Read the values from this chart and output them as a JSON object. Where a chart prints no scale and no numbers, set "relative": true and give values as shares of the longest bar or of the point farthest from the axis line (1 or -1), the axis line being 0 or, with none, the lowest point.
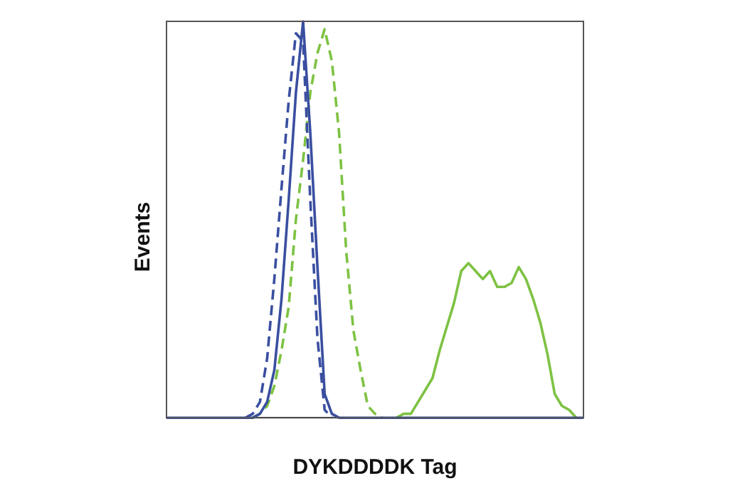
{
  "chart_data": {
    "type": "line",
    "xlabel": "DYKDDDDK Tag",
    "ylabel": "Events",
    "relative": true,
    "legend": false,
    "grid": false,
    "marker": "none",
    "categories": [
      null,
      null,
      null,
      null,
      null,
      null,
      null,
      null,
      null,
      null,
      null,
      null,
      null,
      null,
      null,
      null,
      null,
      null,
      null,
      null,
      null,
      null,
      null,
      null,
      null,
      null,
      null,
      null,
      null,
      null,
      null,
      null,
      null,
      null,
      null,
      null,
      null,
      null,
      null,
      null,
      null,
      null,
      null,
      null,
      null,
      null,
      null,
      null,
      null,
      null,
      null,
      null,
      null,
      null,
      null,
      null,
      null,
      null,
      null
    ],
    "series": [
      {
        "color": "#7dc242",
        "line_style": "dashed",
        "values": [
          null,
          null,
          null,
          null,
          null,
          null,
          null,
          null,
          null,
          null,
          null,
          null,
          0,
          0.01,
          0.03,
          0.08,
          0.17,
          0.28,
          0.5,
          0.65,
          0.82,
          0.92,
          0.98,
          0.9,
          0.72,
          0.42,
          0.22,
          0.12,
          0.03,
          0.01,
          0,
          null,
          null,
          null,
          null,
          null,
          null,
          null,
          null,
          null,
          null,
          null,
          null,
          null,
          null,
          null,
          null,
          null,
          null,
          null,
          null,
          null,
          null,
          null,
          null,
          null,
          null,
          null,
          null
        ]
      },
      {
        "color": "#7dc242",
        "line_style": "solid",
        "values": [
          null,
          null,
          null,
          null,
          null,
          null,
          null,
          null,
          null,
          null,
          null,
          null,
          null,
          null,
          null,
          null,
          null,
          null,
          null,
          null,
          null,
          null,
          null,
          null,
          null,
          null,
          null,
          null,
          null,
          null,
          null,
          null,
          0,
          0.01,
          0.01,
          0.04,
          0.07,
          0.1,
          0.17,
          0.23,
          0.29,
          0.37,
          0.39,
          0.37,
          0.35,
          0.37,
          0.33,
          0.33,
          0.34,
          0.38,
          0.35,
          0.3,
          0.24,
          0.16,
          0.06,
          0.03,
          0.02,
          0,
          null
        ]
      },
      {
        "color": "#3a4fa0",
        "line_style": "dashed",
        "values": [
          null,
          null,
          null,
          null,
          null,
          null,
          null,
          null,
          null,
          null,
          null,
          0,
          0.01,
          0.04,
          0.15,
          0.35,
          0.58,
          0.8,
          0.97,
          0.95,
          0.55,
          0.2,
          0.02,
          0,
          null,
          null,
          null,
          null,
          null,
          null,
          null,
          null,
          null,
          null,
          null,
          null,
          null,
          null,
          null,
          null,
          null,
          null,
          null,
          null,
          null,
          null,
          null,
          null,
          null,
          null,
          null,
          null,
          null,
          null,
          null,
          null,
          null,
          null,
          null
        ]
      },
      {
        "color": "#3a4fa0",
        "line_style": "solid",
        "values": [
          0,
          0,
          0,
          0,
          0,
          0,
          0,
          0,
          0,
          0,
          0,
          0,
          0,
          0.01,
          0.04,
          0.12,
          0.3,
          0.55,
          0.82,
          1,
          0.72,
          0.38,
          0.06,
          0.01,
          0,
          0,
          0,
          0,
          0,
          0,
          0,
          0,
          0,
          0,
          0,
          0,
          0,
          0,
          0,
          0,
          0,
          0,
          0,
          0,
          0,
          0,
          0,
          0,
          0,
          0,
          0,
          0,
          0,
          0,
          0,
          0,
          0,
          0,
          0
        ]
      }
    ]
  }
}
